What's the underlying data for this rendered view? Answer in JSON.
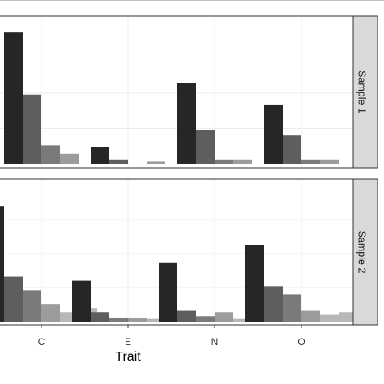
{
  "chart_data": {
    "type": "bar",
    "categories": [
      "C",
      "E",
      "N",
      "O"
    ],
    "xlabel": "Trait",
    "ylabel": "",
    "ylim": [
      0,
      1
    ],
    "grid": true,
    "legend": "none",
    "group_colors": [
      "#262626",
      "#5e5e5e",
      "#7a7a7a",
      "#9c9c9c",
      "#b7b7b7"
    ],
    "panels": [
      {
        "strip": "Sample 1",
        "groups": [
          [
            0.93,
            0.49,
            0.13,
            0.07
          ],
          [
            0.12,
            0.03,
            0.0,
            0.015
          ],
          [
            0.57,
            0.24,
            0.03,
            0.03
          ],
          [
            0.42,
            0.2,
            0.03,
            0.03
          ]
        ]
      },
      {
        "strip": "Sample 2",
        "groups": [
          [
            0.85,
            0.33,
            0.23,
            0.13,
            0.07,
            0.1
          ],
          [
            0.3,
            0.07,
            0.03,
            0.03,
            0.02,
            0.02
          ],
          [
            0.43,
            0.08,
            0.04,
            0.07,
            0.02,
            0.03
          ],
          [
            0.56,
            0.26,
            0.2,
            0.08,
            0.05,
            0.07
          ]
        ]
      }
    ]
  }
}
